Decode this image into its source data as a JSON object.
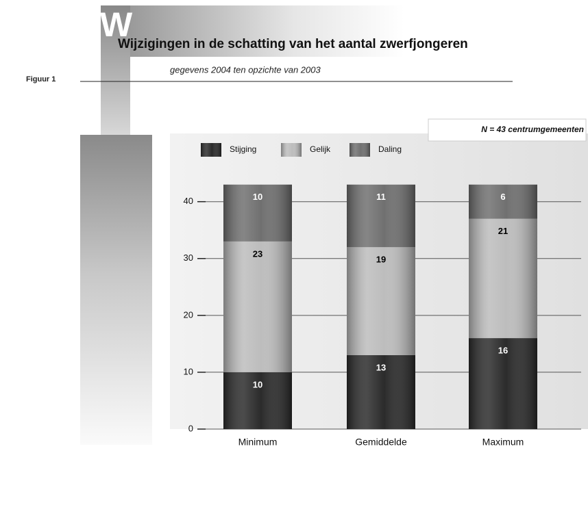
{
  "chart_data": {
    "type": "stacked_bar",
    "figure_label": "Figuur 1",
    "title_initial": "W",
    "title": "Wijzigingen in de schatting van het aantal zwerfjongeren",
    "subtitle": "gegevens 2004 ten opzichte van 2003",
    "annotation": "N = 43 centrumgemeenten",
    "categories": [
      "Minimum",
      "Gemiddelde",
      "Maximum"
    ],
    "series": [
      {
        "name": "Stijging",
        "color": "#2b2b2b",
        "values": [
          10,
          13,
          16
        ]
      },
      {
        "name": "Gelijk",
        "color": "#bdbdbd",
        "values": [
          23,
          19,
          21
        ]
      },
      {
        "name": "Daling",
        "color": "#707070",
        "values": [
          10,
          11,
          6
        ]
      }
    ],
    "ylim": [
      0,
      52
    ],
    "yticks": [
      0,
      10,
      20,
      30,
      40
    ],
    "grid": true
  }
}
